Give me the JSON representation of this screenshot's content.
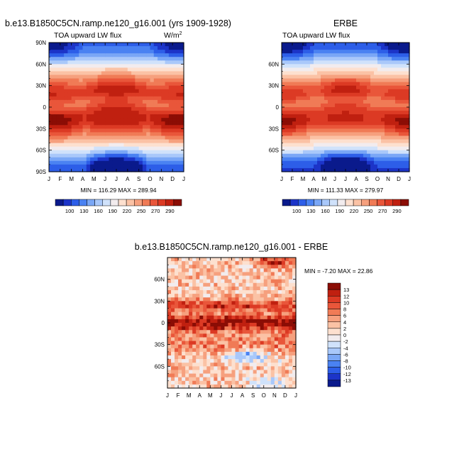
{
  "figure": {
    "colors": {
      "abs_scale": [
        "#0a1a8c",
        "#1c34c8",
        "#2d5ee8",
        "#4a82f2",
        "#7aa7f6",
        "#a9c8fa",
        "#d0e2fb",
        "#f2ecee",
        "#fde0cf",
        "#fbc2a5",
        "#f6a07e",
        "#f07b56",
        "#e9563a",
        "#dc3a24",
        "#c02010",
        "#8b0d05"
      ],
      "diff_scale": [
        "#0a1a8c",
        "#1c34c8",
        "#2d5ee8",
        "#4a82f2",
        "#7aa7f6",
        "#a9c8fa",
        "#d0e2fb",
        "#f2ecee",
        "#fde0cf",
        "#fbc2a5",
        "#f6a07e",
        "#f07b56",
        "#e9563a",
        "#dc3a24",
        "#c02010",
        "#8b0d05"
      ]
    },
    "panels": [
      {
        "id": "model",
        "title": "b.e13.B1850C5CN.ramp.ne120_g16.001 (yrs 1909-1928)",
        "left_label": "TOA upward LW flux",
        "right_label": "W/m",
        "right_label_sup": "2",
        "stats": "MIN = 116.29 MAX = 289.94"
      },
      {
        "id": "obs",
        "title": "ERBE",
        "left_label": "TOA upward LW flux",
        "stats": "MIN = 111.33 MAX = 279.97"
      },
      {
        "id": "diff",
        "title": "b.e13.B1850C5CN.ramp.ne120_g16.001 - ERBE",
        "stats": "MIN = -7.20 MAX = 22.86"
      }
    ],
    "abs_legend_labels": [
      "100",
      "130",
      "160",
      "190",
      "220",
      "250",
      "270",
      "290"
    ],
    "diff_legend_labels": [
      "13",
      "12",
      "10",
      "8",
      "6",
      "4",
      "2",
      "0",
      "-2",
      "-4",
      "-6",
      "-8",
      "-10",
      "-12",
      "-13"
    ]
  },
  "chart_data": [
    {
      "type": "heatmap",
      "title": "b.e13.B1850C5CN.ramp.ne120_g16.001 (yrs 1909-1928)",
      "subtitle": "TOA upward LW flux",
      "units": "W/m2",
      "x": [
        "J",
        "F",
        "M",
        "A",
        "M",
        "J",
        "J",
        "A",
        "S",
        "O",
        "N",
        "D",
        "J"
      ],
      "y_ticks": [
        "90N",
        "60N",
        "30N",
        "0",
        "30S",
        "60S",
        "90S"
      ],
      "ylim": [
        -90,
        90
      ],
      "min": 116.29,
      "max": 289.94,
      "levels": [
        100,
        130,
        160,
        190,
        220,
        250,
        270,
        290
      ]
    },
    {
      "type": "heatmap",
      "title": "ERBE",
      "subtitle": "TOA upward LW flux",
      "x": [
        "J",
        "F",
        "M",
        "A",
        "M",
        "J",
        "J",
        "A",
        "S",
        "O",
        "N",
        "D",
        "J"
      ],
      "y_ticks": [
        "60N",
        "30N",
        "0",
        "30S",
        "60S"
      ],
      "ylim": [
        -90,
        90
      ],
      "min": 111.33,
      "max": 279.97,
      "levels": [
        100,
        130,
        160,
        190,
        220,
        250,
        270,
        290
      ]
    },
    {
      "type": "heatmap",
      "title": "b.e13.B1850C5CN.ramp.ne120_g16.001 - ERBE",
      "x": [
        "J",
        "F",
        "M",
        "A",
        "M",
        "J",
        "J",
        "A",
        "S",
        "O",
        "N",
        "D",
        "J"
      ],
      "y_ticks": [
        "60N",
        "30N",
        "0",
        "30S",
        "60S"
      ],
      "ylim": [
        -90,
        90
      ],
      "min": -7.2,
      "max": 22.86,
      "levels": [
        -13,
        -12,
        -10,
        -8,
        -6,
        -4,
        -2,
        0,
        2,
        4,
        6,
        8,
        10,
        12,
        13
      ]
    }
  ]
}
